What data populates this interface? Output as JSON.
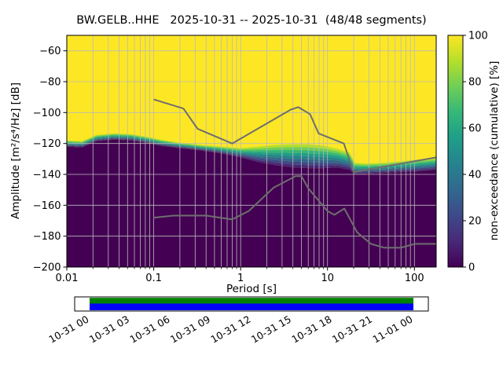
{
  "chart_data": {
    "type": "heatmap",
    "title": "BW.GELB..HHE   2025-10-31 -- 2025-10-31  (48/48 segments)",
    "xlabel": "Period [s]",
    "ylabel": "Amplitude [m²/s⁴/Hz] [dB]",
    "colorbar_label": "non-exceedance (cumulative) [%]",
    "x_scale": "log",
    "xlim": [
      0.01,
      178
    ],
    "ylim": [
      -200,
      -50
    ],
    "x_ticks": [
      0.01,
      0.1,
      1,
      10,
      100
    ],
    "x_tick_labels": [
      "0.01",
      "0.1",
      "1",
      "10",
      "100"
    ],
    "y_ticks": [
      -60,
      -80,
      -100,
      -120,
      -140,
      -160,
      -180,
      -200
    ],
    "y_tick_labels": [
      "−60",
      "−80",
      "−100",
      "−120",
      "−140",
      "−160",
      "−180",
      "−200"
    ],
    "colorbar_ticks": [
      0,
      20,
      40,
      60,
      80,
      100
    ],
    "grid": true,
    "grid_color": "#b9b9b9",
    "high_color": "#fde725",
    "low_color": "#440154",
    "colormap_stops": [
      "#440154",
      "#482878",
      "#3e4989",
      "#31688e",
      "#26828e",
      "#1f9e89",
      "#35b779",
      "#6ece58",
      "#b5de2b",
      "#fde725"
    ],
    "band_colors": [
      "#b5de2b",
      "#6ece58",
      "#35b779",
      "#1f9e89",
      "#26828e",
      "#31688e",
      "#3e4989",
      "#482878"
    ],
    "distribution_boundary": [
      [
        0.01,
        -118,
        -122
      ],
      [
        0.015,
        -118.5,
        -122.5
      ],
      [
        0.022,
        -114.5,
        -118.5
      ],
      [
        0.035,
        -113.5,
        -117.5
      ],
      [
        0.055,
        -114,
        -118
      ],
      [
        0.08,
        -115.5,
        -119.5
      ],
      [
        0.12,
        -117.5,
        -121.5
      ],
      [
        0.2,
        -119.5,
        -123
      ],
      [
        0.35,
        -121,
        -124.5
      ],
      [
        0.6,
        -122,
        -126.5
      ],
      [
        1,
        -123,
        -129
      ],
      [
        1.6,
        -122,
        -132
      ],
      [
        2.5,
        -121,
        -134
      ],
      [
        4,
        -120.5,
        -135.5
      ],
      [
        6,
        -120.5,
        -136
      ],
      [
        9,
        -121.5,
        -136
      ],
      [
        13,
        -123.5,
        -135.5
      ],
      [
        18,
        -126,
        -137
      ],
      [
        20.5,
        -132.5,
        -140
      ],
      [
        28,
        -133,
        -139.5
      ],
      [
        45,
        -132.5,
        -139
      ],
      [
        70,
        -131.5,
        -138.5
      ],
      [
        110,
        -130.5,
        -138
      ],
      [
        178,
        -129.5,
        -137
      ]
    ],
    "noise_models": {
      "color": "#6e6e6e",
      "nhnm": [
        [
          0.1,
          -91.5
        ],
        [
          0.22,
          -97.4
        ],
        [
          0.32,
          -110.5
        ],
        [
          0.8,
          -120
        ],
        [
          3.8,
          -98
        ],
        [
          4.6,
          -96.5
        ],
        [
          6.3,
          -101
        ],
        [
          7.9,
          -113.5
        ],
        [
          15.4,
          -120
        ],
        [
          20,
          -138.5
        ],
        [
          178,
          -129
        ]
      ],
      "nlnm": [
        [
          0.1,
          -168
        ],
        [
          0.17,
          -166.7
        ],
        [
          0.4,
          -166.7
        ],
        [
          0.8,
          -169.2
        ],
        [
          1.24,
          -163.7
        ],
        [
          2.4,
          -148.6
        ],
        [
          4.3,
          -141.1
        ],
        [
          5,
          -141.1
        ],
        [
          6,
          -149
        ],
        [
          10,
          -163.8
        ],
        [
          12,
          -166.2
        ],
        [
          15.6,
          -162.1
        ],
        [
          21.9,
          -177.5
        ],
        [
          31.6,
          -185
        ],
        [
          45,
          -187.5
        ],
        [
          70,
          -187.5
        ],
        [
          101,
          -185
        ],
        [
          178,
          -185
        ]
      ]
    },
    "coverage_bar": {
      "labels": [
        "10-31 00",
        "10-31 03",
        "10-31 06",
        "10-31 09",
        "10-31 12",
        "10-31 15",
        "10-31 18",
        "10-31 21",
        "11-01 00"
      ],
      "green": "#008000",
      "blue": "#0000ff",
      "border": "#000000"
    }
  }
}
